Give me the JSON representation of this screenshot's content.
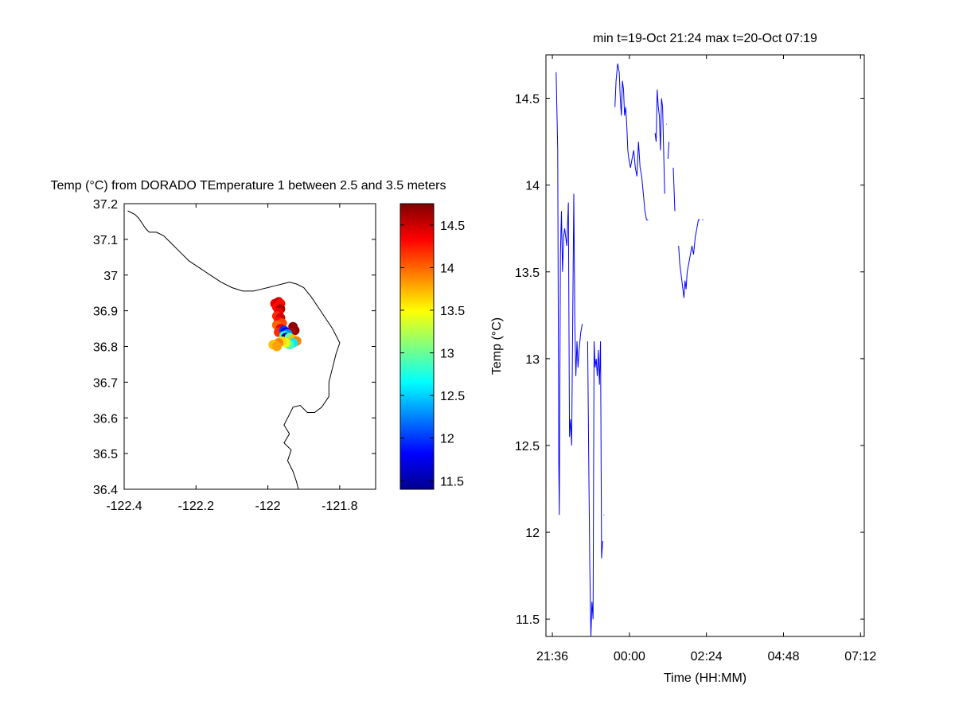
{
  "chart_data": [
    {
      "type": "scatter",
      "title": "Temp (°C) from DORADO TEmperature 1 between 2.5 and 3.5 meters",
      "xlabel": "",
      "ylabel": "",
      "xlim": [
        -122.4,
        -121.7
      ],
      "ylim": [
        36.4,
        37.2
      ],
      "x_ticks": [
        "-122.4",
        "-122.2",
        "-122",
        "-121.8"
      ],
      "y_ticks": [
        "36.4",
        "36.5",
        "36.6",
        "36.7",
        "36.8",
        "36.9",
        "37",
        "37.1",
        "37.2"
      ],
      "coastline": [
        [
          -122.39,
          37.18
        ],
        [
          -122.37,
          37.17
        ],
        [
          -122.36,
          37.16
        ],
        [
          -122.34,
          37.13
        ],
        [
          -122.33,
          37.12
        ],
        [
          -122.31,
          37.12
        ],
        [
          -122.29,
          37.11
        ],
        [
          -122.27,
          37.09
        ],
        [
          -122.25,
          37.07
        ],
        [
          -122.22,
          37.04
        ],
        [
          -122.19,
          37.02
        ],
        [
          -122.16,
          37.0
        ],
        [
          -122.13,
          36.98
        ],
        [
          -122.1,
          36.965
        ],
        [
          -122.07,
          36.955
        ],
        [
          -122.04,
          36.955
        ],
        [
          -122.02,
          36.96
        ],
        [
          -122.0,
          36.965
        ],
        [
          -121.98,
          36.97
        ],
        [
          -121.96,
          36.975
        ],
        [
          -121.94,
          36.98
        ],
        [
          -121.92,
          36.975
        ],
        [
          -121.9,
          36.965
        ],
        [
          -121.88,
          36.94
        ],
        [
          -121.86,
          36.91
        ],
        [
          -121.84,
          36.88
        ],
        [
          -121.82,
          36.85
        ],
        [
          -121.8,
          36.81
        ],
        [
          -121.81,
          36.78
        ],
        [
          -121.82,
          36.74
        ],
        [
          -121.83,
          36.7
        ],
        [
          -121.83,
          36.66
        ],
        [
          -121.85,
          36.63
        ],
        [
          -121.87,
          36.615
        ],
        [
          -121.89,
          36.615
        ],
        [
          -121.91,
          36.635
        ],
        [
          -121.93,
          36.63
        ],
        [
          -121.94,
          36.61
        ],
        [
          -121.955,
          36.58
        ],
        [
          -121.94,
          36.555
        ],
        [
          -121.955,
          36.53
        ],
        [
          -121.935,
          36.51
        ],
        [
          -121.945,
          36.48
        ],
        [
          -121.93,
          36.45
        ],
        [
          -121.92,
          36.42
        ],
        [
          -121.915,
          36.4
        ]
      ],
      "points": [
        {
          "x": -121.98,
          "y": 36.92,
          "value": 14.4
        },
        {
          "x": -121.97,
          "y": 36.925,
          "value": 14.5
        },
        {
          "x": -121.965,
          "y": 36.92,
          "value": 14.3
        },
        {
          "x": -121.975,
          "y": 36.91,
          "value": 14.3
        },
        {
          "x": -121.965,
          "y": 36.905,
          "value": 14.6
        },
        {
          "x": -121.97,
          "y": 36.895,
          "value": 14.4
        },
        {
          "x": -121.975,
          "y": 36.885,
          "value": 14.2
        },
        {
          "x": -121.965,
          "y": 36.88,
          "value": 14.5
        },
        {
          "x": -121.97,
          "y": 36.87,
          "value": 14.3
        },
        {
          "x": -121.96,
          "y": 36.865,
          "value": 14.1
        },
        {
          "x": -121.975,
          "y": 36.86,
          "value": 14.0
        },
        {
          "x": -121.965,
          "y": 36.85,
          "value": 14.4
        },
        {
          "x": -121.97,
          "y": 36.84,
          "value": 14.2
        },
        {
          "x": -121.93,
          "y": 36.855,
          "value": 14.7
        },
        {
          "x": -121.925,
          "y": 36.845,
          "value": 14.7
        },
        {
          "x": -121.935,
          "y": 36.84,
          "value": 14.6
        },
        {
          "x": -121.955,
          "y": 36.845,
          "value": 12.0
        },
        {
          "x": -121.95,
          "y": 36.84,
          "value": 11.8
        },
        {
          "x": -121.945,
          "y": 36.835,
          "value": 12.3
        },
        {
          "x": -121.955,
          "y": 36.83,
          "value": 12.8
        },
        {
          "x": -121.95,
          "y": 36.825,
          "value": 11.5
        },
        {
          "x": -121.94,
          "y": 36.825,
          "value": 13.0
        },
        {
          "x": -121.93,
          "y": 36.82,
          "value": 13.7
        },
        {
          "x": -121.92,
          "y": 36.815,
          "value": 13.9
        },
        {
          "x": -121.93,
          "y": 36.81,
          "value": 12.6
        },
        {
          "x": -121.94,
          "y": 36.805,
          "value": 12.9
        },
        {
          "x": -121.95,
          "y": 36.81,
          "value": 13.4
        },
        {
          "x": -121.96,
          "y": 36.815,
          "value": 13.6
        },
        {
          "x": -121.97,
          "y": 36.81,
          "value": 13.9
        },
        {
          "x": -121.985,
          "y": 36.805,
          "value": 13.7
        },
        {
          "x": -121.975,
          "y": 36.8,
          "value": 13.8
        }
      ],
      "colorbar": {
        "min": 11.4,
        "max": 14.75,
        "ticks": [
          "11.5",
          "12",
          "12.5",
          "13",
          "13.5",
          "14",
          "14.5"
        ]
      }
    },
    {
      "type": "line",
      "title": "min t=19-Oct 21:24 max t=20-Oct 07:19",
      "xlabel": "Time (HH:MM)",
      "ylabel": "Temp (°C)",
      "xlim": [
        "21:24",
        "07:19"
      ],
      "ylim": [
        11.4,
        14.75
      ],
      "x_ticks": [
        "21:36",
        "00:00",
        "02:24",
        "04:48",
        "07:12"
      ],
      "y_ticks": [
        "11.5",
        "12",
        "12.5",
        "13",
        "13.5",
        "14",
        "14.5"
      ],
      "series": [
        {
          "color": "#0000ff",
          "segments": [
            [
              [
                "21:43",
                14.65
              ],
              [
                "21:46",
                14.2
              ],
              [
                "21:48",
                12.4
              ],
              [
                "21:49",
                12.1
              ],
              [
                "21:51",
                13.6
              ],
              [
                "21:53",
                13.85
              ],
              [
                "21:55",
                13.5
              ],
              [
                "21:57",
                13.7
              ],
              [
                "21:59",
                13.75
              ],
              [
                "22:03",
                13.65
              ],
              [
                "22:06",
                13.9
              ],
              [
                "22:08",
                12.55
              ],
              [
                "22:10",
                12.65
              ],
              [
                "22:12",
                12.5
              ],
              [
                "22:14",
                13.2
              ],
              [
                "22:16",
                13.95
              ],
              [
                "22:18",
                13.2
              ],
              [
                "22:20",
                12.9
              ],
              [
                "22:22",
                13.1
              ],
              [
                "22:24",
                12.95
              ],
              [
                "22:26",
                13.05
              ],
              [
                "22:29",
                13.15
              ],
              [
                "22:32",
                13.2
              ]
            ],
            [
              [
                "22:42",
                13.1
              ],
              [
                "22:44",
                12.4
              ],
              [
                "22:46",
                11.8
              ],
              [
                "22:48",
                11.4
              ],
              [
                "22:50",
                11.6
              ],
              [
                "22:52",
                11.5
              ],
              [
                "22:54",
                13.1
              ],
              [
                "22:56",
                12.95
              ],
              [
                "22:58",
                13.0
              ],
              [
                "23:00",
                12.9
              ],
              [
                "23:02",
                13.05
              ],
              [
                "23:04",
                12.85
              ],
              [
                "23:06",
                13.1
              ],
              [
                "23:08",
                11.85
              ],
              [
                "23:10",
                11.95
              ]
            ],
            [
              [
                "23:12",
                12.1
              ],
              [
                "23:13",
                12.1
              ]
            ],
            [
              [
                "23:33",
                14.45
              ],
              [
                "23:35",
                14.6
              ],
              [
                "23:38",
                14.7
              ],
              [
                "23:41",
                14.65
              ],
              [
                "23:43",
                14.5
              ],
              [
                "23:45",
                14.4
              ],
              [
                "23:47",
                14.6
              ],
              [
                "23:49",
                14.55
              ],
              [
                "23:51",
                14.4
              ],
              [
                "23:53",
                14.45
              ],
              [
                "23:55",
                14.35
              ],
              [
                "23:57",
                14.2
              ],
              [
                "23:59",
                14.15
              ],
              [
                "00:02",
                14.1
              ],
              [
                "00:05",
                14.15
              ],
              [
                "00:08",
                14.2
              ],
              [
                "00:11",
                14.1
              ],
              [
                "00:14",
                14.05
              ],
              [
                "00:17",
                14.25
              ],
              [
                "00:20",
                14.1
              ],
              [
                "00:23",
                14.05
              ],
              [
                "00:26",
                13.95
              ],
              [
                "00:29",
                13.85
              ],
              [
                "00:32",
                13.8
              ],
              [
                "00:35",
                13.8
              ]
            ],
            [
              [
                "00:48",
                14.3
              ],
              [
                "00:50",
                14.25
              ],
              [
                "00:52",
                14.55
              ],
              [
                "00:54",
                14.45
              ],
              [
                "00:56",
                14.4
              ],
              [
                "00:58",
                14.2
              ],
              [
                "01:00",
                14.5
              ],
              [
                "01:02",
                14.45
              ],
              [
                "01:04",
                14.2
              ],
              [
                "01:06",
                13.95
              ]
            ],
            [
              [
                "01:09",
                14.35
              ],
              [
                "01:10",
                14.35
              ]
            ],
            [
              [
                "01:12",
                14.15
              ],
              [
                "01:14",
                14.25
              ]
            ],
            [
              [
                "01:22",
                14.1
              ],
              [
                "01:25",
                13.85
              ]
            ],
            [
              [
                "01:32",
                13.65
              ],
              [
                "01:34",
                13.55
              ],
              [
                "01:36",
                13.5
              ],
              [
                "01:38",
                13.45
              ],
              [
                "01:40",
                13.4
              ],
              [
                "01:42",
                13.35
              ],
              [
                "01:44",
                13.45
              ],
              [
                "01:46",
                13.4
              ],
              [
                "01:48",
                13.5
              ],
              [
                "01:51",
                13.55
              ],
              [
                "01:54",
                13.6
              ],
              [
                "01:57",
                13.65
              ],
              [
                "02:00",
                13.6
              ],
              [
                "02:03",
                13.7
              ],
              [
                "02:06",
                13.75
              ],
              [
                "02:09",
                13.8
              ],
              [
                "02:12",
                13.8
              ]
            ],
            [
              [
                "02:16",
                13.8
              ],
              [
                "02:18",
                13.8
              ]
            ]
          ]
        }
      ]
    }
  ]
}
